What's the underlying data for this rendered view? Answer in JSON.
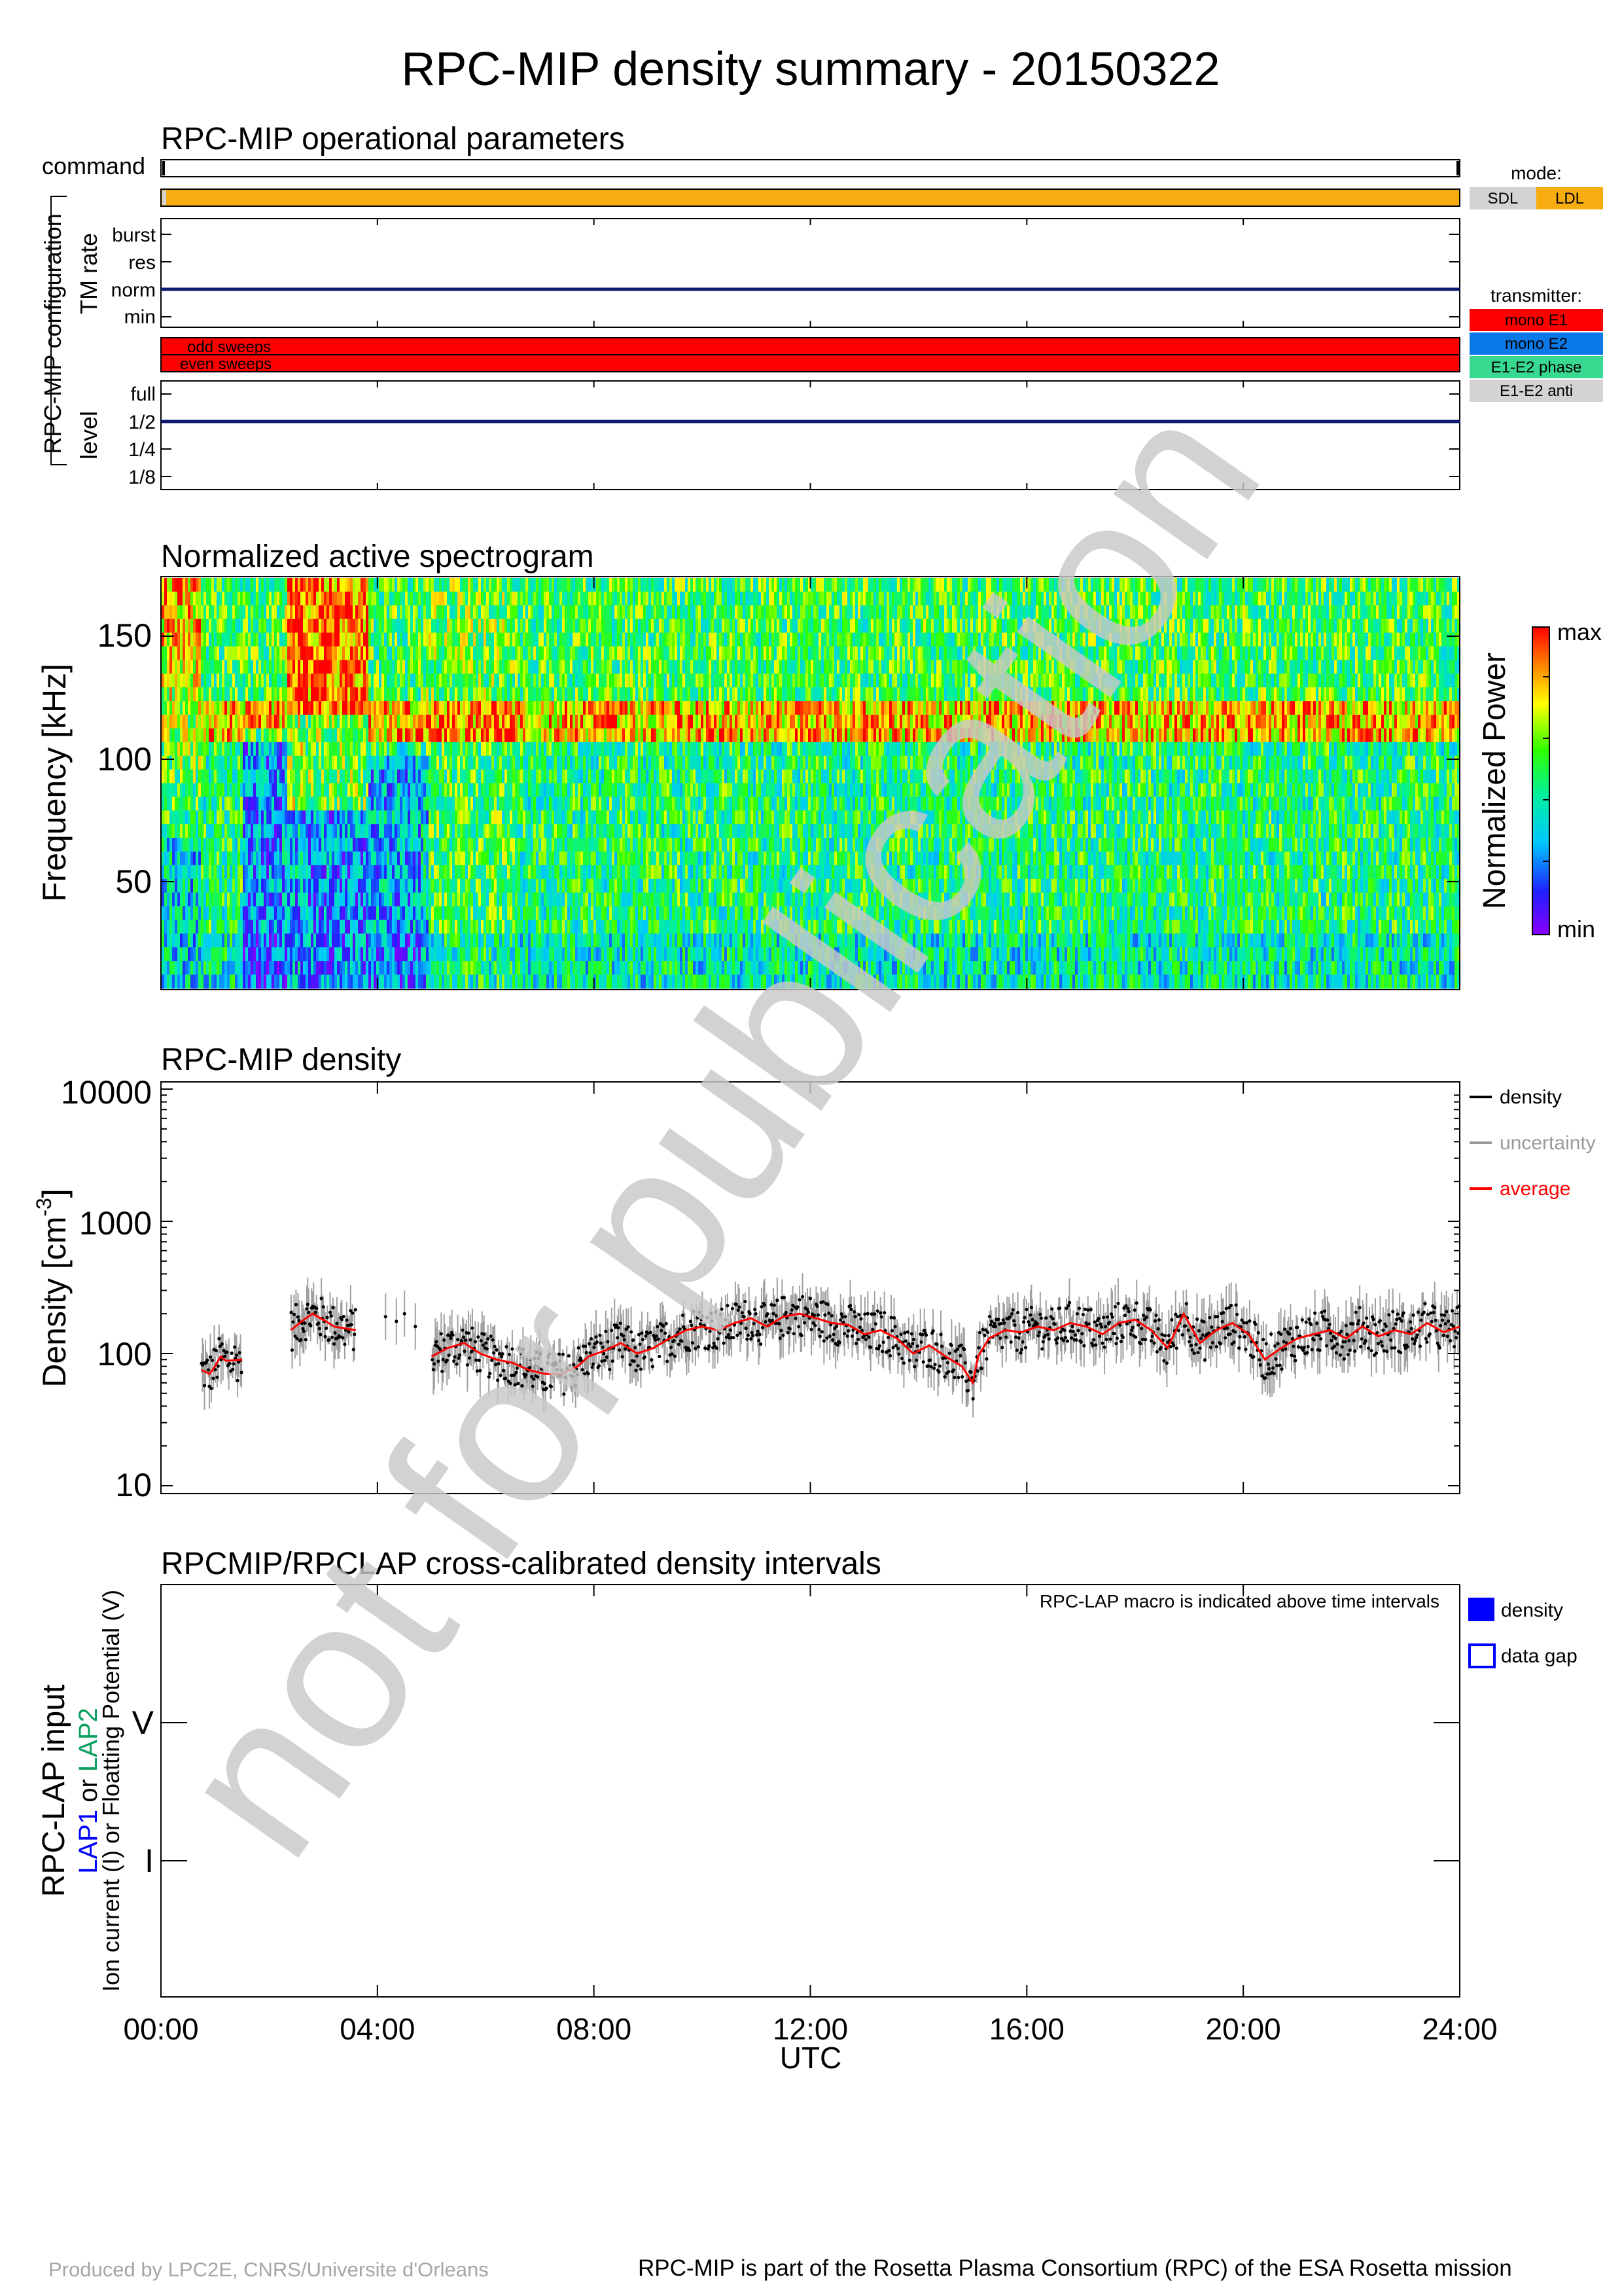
{
  "title": "RPC-MIP density summary - 20150322",
  "watermark": "not for publication",
  "time_axis": {
    "ticks": [
      "00:00",
      "04:00",
      "08:00",
      "12:00",
      "16:00",
      "20:00",
      "24:00"
    ],
    "label": "UTC"
  },
  "operational": {
    "title": "RPC-MIP operational parameters",
    "command_label": "command",
    "config_label": "RPC-MIP configuration",
    "tm_rate_label": "TM rate",
    "tm_rate_levels": [
      "burst",
      "res",
      "norm",
      "min"
    ],
    "tm_rate_value": "norm",
    "sweep_labels": [
      "odd sweeps",
      "even sweeps"
    ],
    "level_label": "level",
    "level_levels": [
      "full",
      "1/2",
      "1/4",
      "1/8"
    ],
    "level_value": "1/2",
    "mode_legend": {
      "title": "mode:",
      "items": [
        {
          "label": "SDL",
          "color": "#d3d3d3"
        },
        {
          "label": "LDL",
          "color": "#f7ac0f"
        }
      ]
    },
    "transmitter_legend": {
      "title": "transmitter:",
      "items": [
        {
          "label": "mono E1",
          "color": "#ff0000"
        },
        {
          "label": "mono E2",
          "color": "#0a78e6"
        },
        {
          "label": "E1-E2 phase",
          "color": "#38d890"
        },
        {
          "label": "E1-E2 anti",
          "color": "#d3d3d3"
        }
      ]
    },
    "mode_bar_color": "#f7ac0f",
    "sweep_bar_color": "#ff0000",
    "line_color": "#0d1a6e"
  },
  "spectrogram": {
    "title": "Normalized active spectrogram",
    "ylabel": "Frequency [kHz]",
    "yticks": [
      "150",
      "100",
      "50"
    ],
    "colorbar_label": "Normalized Power",
    "colorbar_max": "max",
    "colorbar_min": "min"
  },
  "density": {
    "title": "RPC-MIP density",
    "ylabel": "Density [cm",
    "ylabel_sup": "-3",
    "ylabel_close": "]",
    "yticks": [
      "10000",
      "1000",
      "100",
      "10"
    ],
    "legend": [
      {
        "label": "density",
        "color": "#000000"
      },
      {
        "label": "uncertainty",
        "color": "#9a9a9a"
      },
      {
        "label": "average",
        "color": "#ff0000"
      }
    ]
  },
  "crosscal": {
    "title": "RPCMIP/RPCLAP cross-calibrated density intervals",
    "note": "RPC-LAP macro is indicated above time intervals",
    "ylabel_main": "RPC-LAP input",
    "ylabel_lap1": "LAP1",
    "ylabel_or": " or ",
    "ylabel_lap2": "LAP2",
    "ylabel_sub": "Ion current (I) or Floatting Potential (V)",
    "yticks": [
      "V",
      "I"
    ],
    "legend": [
      {
        "label": "density",
        "color": "#0000ff"
      },
      {
        "label": "data gap",
        "color": "#0000ff"
      }
    ]
  },
  "footer": {
    "left": "Produced by LPC2E, CNRS/Universite d'Orleans",
    "right": "RPC-MIP is part of the Rosetta Plasma Consortium (RPC) of the ESA Rosetta mission"
  },
  "chart_data": [
    {
      "type": "line",
      "title": "RPC-MIP density",
      "xlabel": "UTC",
      "ylabel": "Density [cm-3]",
      "yscale": "log",
      "xlim": [
        0,
        24
      ],
      "ylim": [
        10,
        10000
      ],
      "x": [
        0.75,
        0.9,
        1.0,
        1.1,
        1.2,
        1.5,
        2.4,
        2.6,
        2.8,
        3.0,
        3.2,
        3.4,
        3.6,
        5.0,
        5.3,
        5.6,
        5.9,
        6.2,
        6.5,
        6.8,
        7.1,
        7.4,
        7.7,
        7.9,
        8.2,
        8.5,
        8.8,
        9.1,
        9.4,
        9.7,
        10.0,
        10.3,
        10.6,
        10.9,
        11.2,
        11.5,
        11.8,
        12.1,
        12.4,
        12.7,
        13.0,
        13.3,
        13.6,
        13.9,
        14.2,
        14.5,
        14.8,
        15.0,
        15.1,
        15.3,
        15.6,
        15.9,
        16.2,
        16.5,
        16.8,
        17.1,
        17.4,
        17.7,
        18.0,
        18.3,
        18.6,
        18.9,
        19.2,
        19.5,
        19.8,
        20.1,
        20.4,
        20.7,
        21.0,
        21.3,
        21.6,
        21.9,
        22.2,
        22.5,
        22.8,
        23.1,
        23.4,
        23.7,
        24.0
      ],
      "series": [
        {
          "name": "average",
          "values": [
            75,
            70,
            80,
            95,
            88,
            90,
            150,
            175,
            200,
            180,
            160,
            155,
            150,
            95,
            110,
            120,
            100,
            90,
            85,
            75,
            70,
            70,
            80,
            95,
            105,
            120,
            100,
            110,
            130,
            150,
            160,
            150,
            170,
            185,
            160,
            190,
            200,
            185,
            170,
            165,
            140,
            150,
            130,
            100,
            115,
            95,
            80,
            60,
            95,
            130,
            150,
            145,
            160,
            150,
            170,
            160,
            140,
            170,
            180,
            150,
            110,
            200,
            120,
            150,
            170,
            140,
            90,
            110,
            130,
            140,
            150,
            130,
            160,
            135,
            150,
            140,
            170,
            145,
            160
          ]
        }
      ]
    },
    {
      "type": "heatmap",
      "title": "Normalized active spectrogram",
      "xlabel": "UTC",
      "ylabel": "Frequency [kHz]",
      "xlim": [
        0,
        24
      ],
      "ylim": [
        5,
        175
      ]
    }
  ]
}
